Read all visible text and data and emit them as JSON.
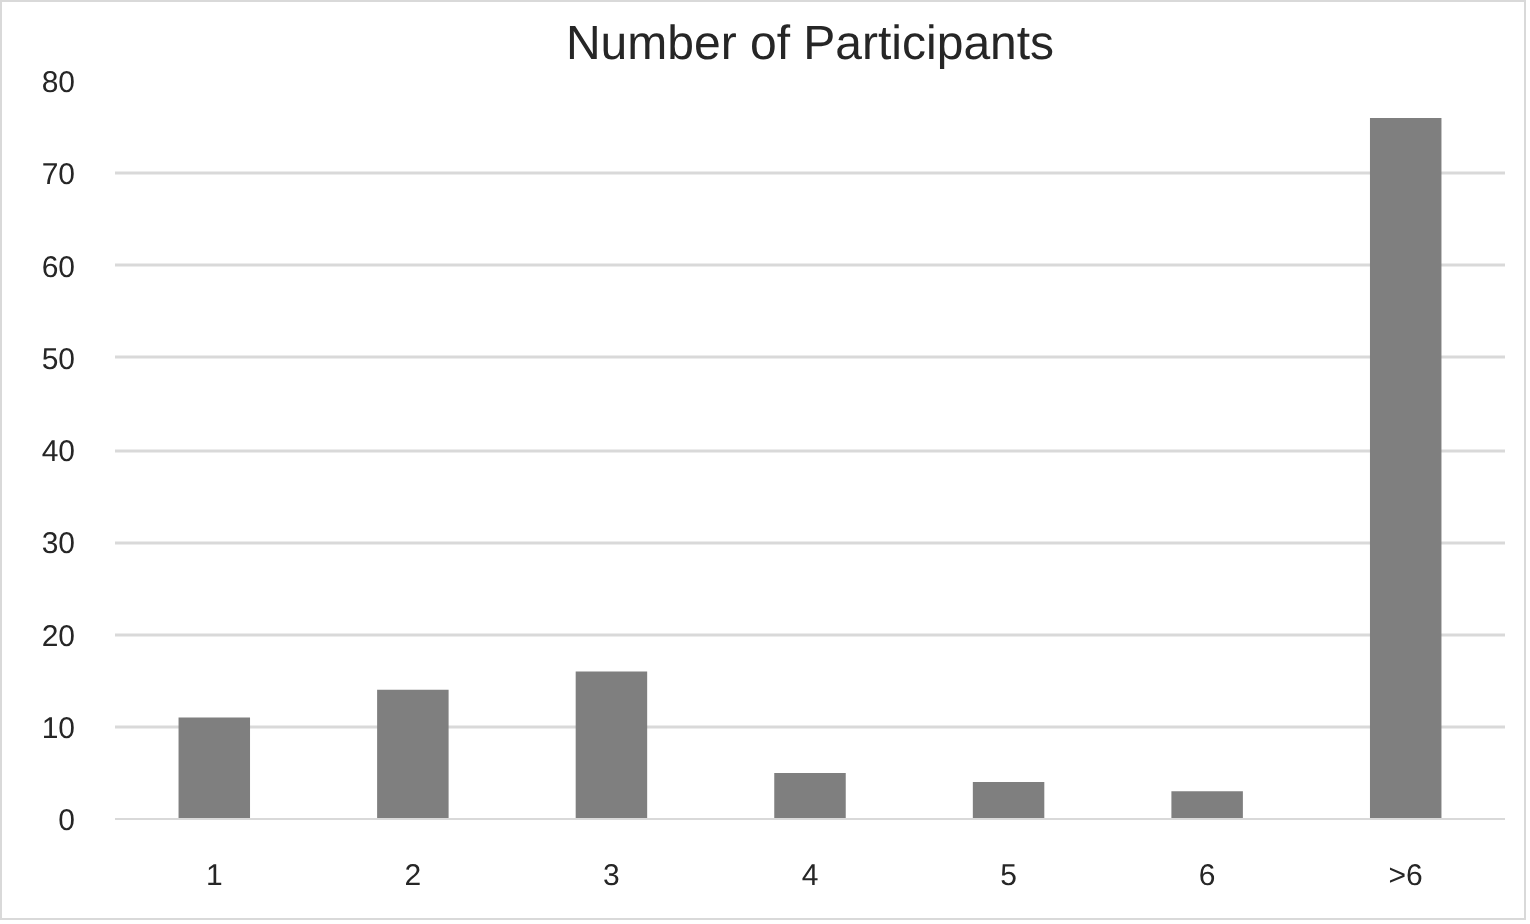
{
  "chart_data": {
    "type": "bar",
    "title": "Number of Participants",
    "categories": [
      "1",
      "2",
      "3",
      "4",
      "5",
      "6",
      ">6"
    ],
    "values": [
      11,
      14,
      16,
      5,
      4,
      3,
      76
    ],
    "color": "#7f7f7f",
    "ylim": [
      0,
      80
    ],
    "yticks": [
      0,
      10,
      20,
      30,
      40,
      50,
      60,
      70,
      80
    ],
    "grid": "y"
  }
}
